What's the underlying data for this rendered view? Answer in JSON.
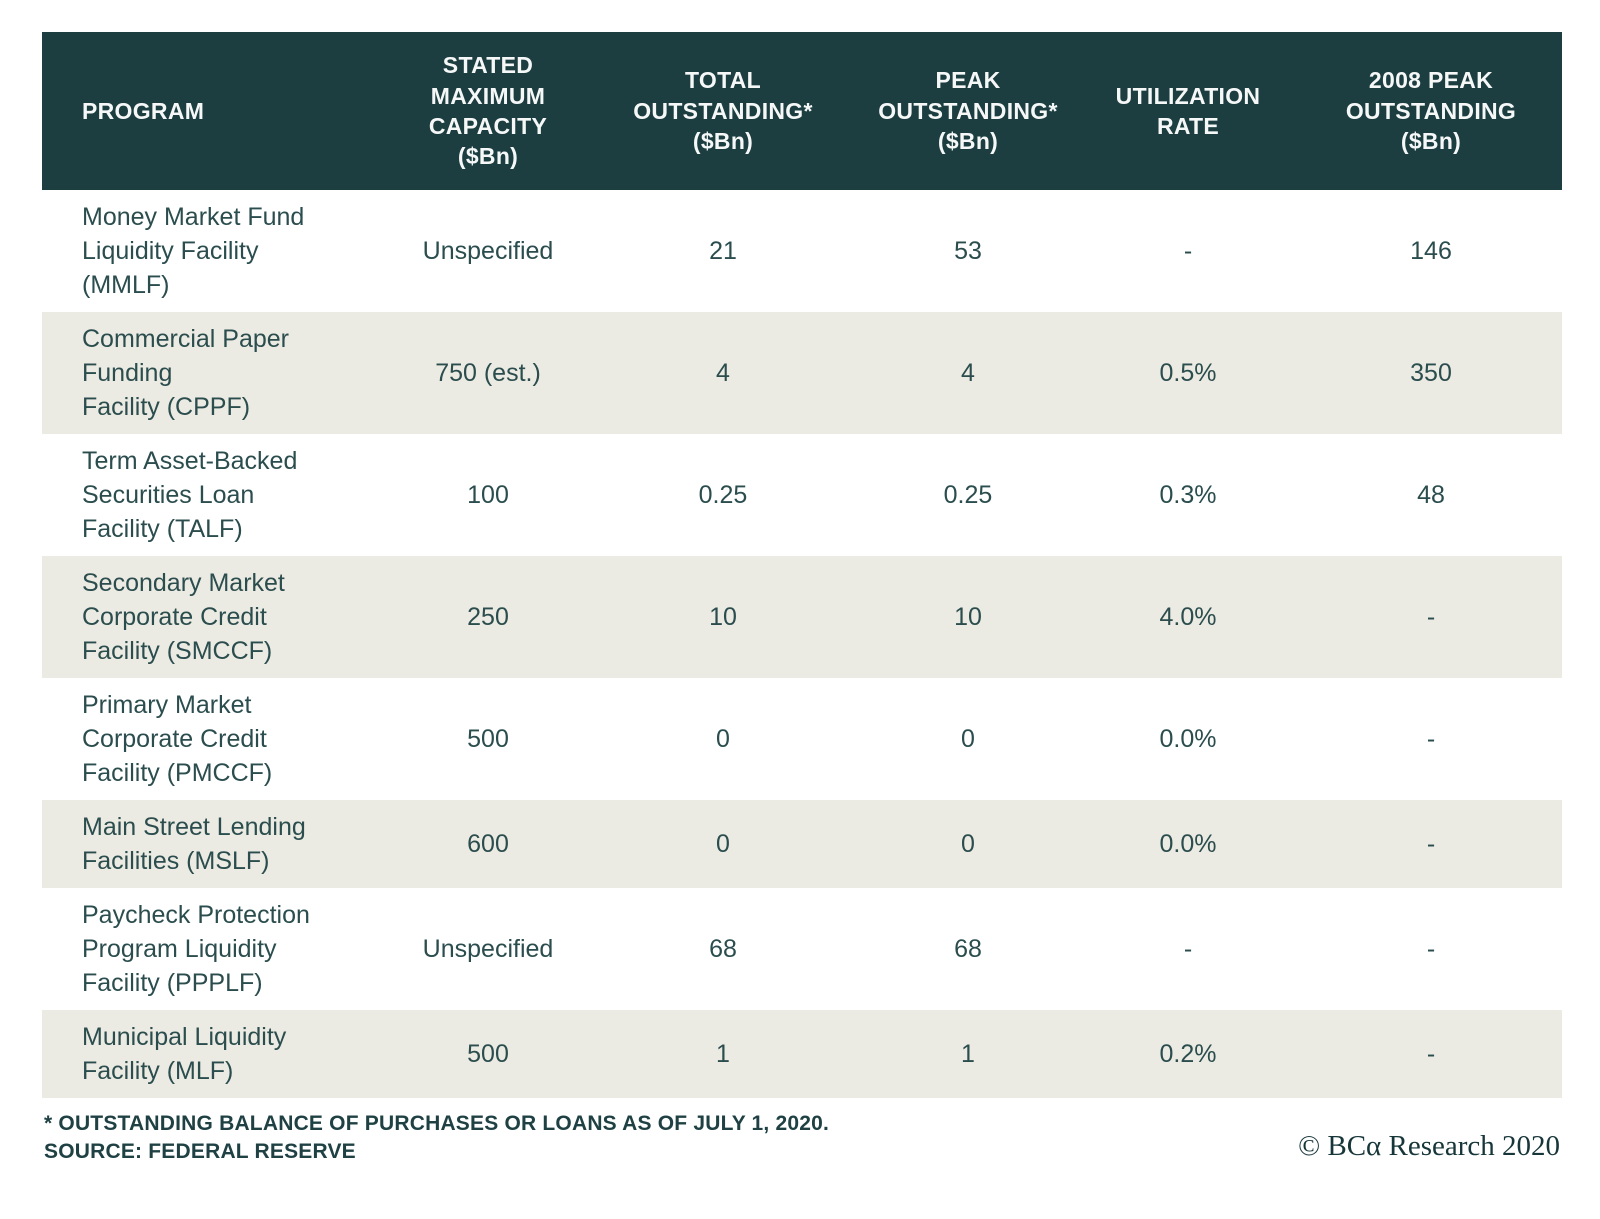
{
  "chart_data": {
    "type": "table",
    "columns": [
      "PROGRAM",
      "STATED\nMAXIMUM\nCAPACITY\n($Bn)",
      "TOTAL\nOUTSTANDING*\n($Bn)",
      "PEAK\nOUTSTANDING*\n($Bn)",
      "UTILIZATION\nRATE",
      "2008 PEAK\nOUTSTANDING\n($Bn)"
    ],
    "rows": [
      {
        "program": "Money Market Fund\nLiquidity Facility\n(MMLF)",
        "capacity": "Unspecified",
        "total": "21",
        "peak": "53",
        "utilization": "-",
        "peak2008": "146"
      },
      {
        "program": "Commercial Paper\nFunding\nFacility (CPPF)",
        "capacity": "750 (est.)",
        "total": "4",
        "peak": "4",
        "utilization": "0.5%",
        "peak2008": "350"
      },
      {
        "program": "Term Asset-Backed\nSecurities Loan\nFacility (TALF)",
        "capacity": "100",
        "total": "0.25",
        "peak": "0.25",
        "utilization": "0.3%",
        "peak2008": "48"
      },
      {
        "program": "Secondary Market\nCorporate Credit\nFacility (SMCCF)",
        "capacity": "250",
        "total": "10",
        "peak": "10",
        "utilization": "4.0%",
        "peak2008": "-"
      },
      {
        "program": "Primary Market\nCorporate Credit\nFacility (PMCCF)",
        "capacity": "500",
        "total": "0",
        "peak": "0",
        "utilization": "0.0%",
        "peak2008": "-"
      },
      {
        "program": "Main Street Lending\nFacilities (MSLF)",
        "capacity": "600",
        "total": "0",
        "peak": "0",
        "utilization": "0.0%",
        "peak2008": "-"
      },
      {
        "program": "Paycheck Protection\nProgram Liquidity\nFacility (PPPLF)",
        "capacity": "Unspecified",
        "total": "68",
        "peak": "68",
        "utilization": "-",
        "peak2008": "-"
      },
      {
        "program": "Municipal Liquidity\nFacility (MLF)",
        "capacity": "500",
        "total": "1",
        "peak": "1",
        "utilization": "0.2%",
        "peak2008": "-"
      }
    ],
    "title": "",
    "legend": null,
    "notes": "* OUTSTANDING BALANCE OF PURCHASES OR LOANS AS OF JULY 1, 2020. SOURCE: FEDERAL RESERVE"
  },
  "footer": {
    "footnote": "* OUTSTANDING BALANCE OF PURCHASES OR LOANS AS OF JULY 1, 2020.\nSOURCE: FEDERAL RESERVE",
    "copyright": "© BCα Research 2020"
  },
  "colors": {
    "header_bg": "#1c3e41",
    "header_text": "#f6f8f8",
    "alt_row_bg": "#ecebe3",
    "body_text": "#2b4d4e",
    "footnote_text": "#1f4143"
  }
}
